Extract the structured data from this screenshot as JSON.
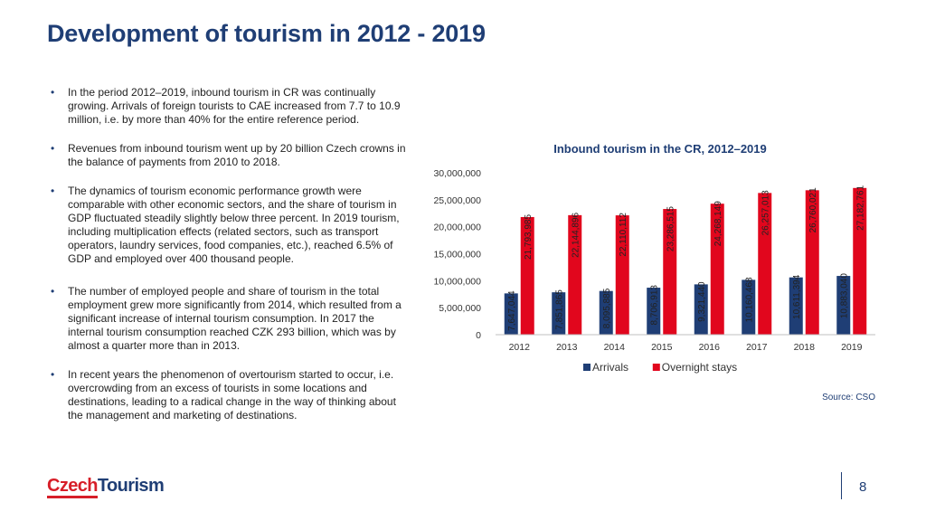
{
  "page": {
    "title": "Development of tourism in 2012 - 2019",
    "bullets": [
      "In the period 2012–2019, inbound tourism in CR was continually growing. Arrivals of foreign tourists to CAE increased from 7.7 to 10.9 million, i.e. by more than 40% for the entire reference period.",
      "Revenues from inbound tourism went up by 20 billion Czech crowns in the balance of payments from 2010 to 2018.",
      "The dynamics of tourism economic performance growth were comparable with other economic sectors, and the share of tourism in GDP fluctuated steadily slightly below three percent. In 2019 tourism, including multiplication effects (related sectors, such as transport operators, laundry services, food companies, etc.), reached 6.5% of GDP and employed over 400 thousand people.",
      "The number of employed people and share of tourism in the total employment grew more significantly from 2014, which resulted from a significant increase of internal tourism consumption. In 2017 the internal tourism consumption reached CZK 293 billion, which was by almost a quarter more than in 2013.",
      "In recent years the phenomenon of overtourism started to occur, i.e. overcrowding from an excess of tourists in some locations and destinations, leading to a radical change in the way of thinking about the management and marketing of destinations."
    ],
    "bullet_symbol": "•",
    "source": "Source: CSO",
    "logo": {
      "part1": "Czech",
      "part2": "Tourism"
    },
    "page_number": "8"
  },
  "chart_data": {
    "type": "bar",
    "title": "Inbound tourism in the CR, 2012–2019",
    "categories": [
      "2012",
      "2013",
      "2014",
      "2015",
      "2016",
      "2017",
      "2018",
      "2019"
    ],
    "series": [
      {
        "name": "Arrivals",
        "color": "#1f3e75",
        "values": [
          7647044,
          7851865,
          8095885,
          8706913,
          9321440,
          10160468,
          10611394,
          10883040
        ],
        "labels": [
          "7,647,044",
          "7,851,865",
          "8,095,885",
          "8,706,913",
          "9,321,440",
          "10,160,468",
          "10,611,394",
          "10,883,040"
        ]
      },
      {
        "name": "Overnight stays",
        "color": "#e1061d",
        "values": [
          21793985,
          22144896,
          22110112,
          23286515,
          24268149,
          26257013,
          26760021,
          27182761
        ],
        "labels": [
          "21,793,985",
          "22,144,896",
          "22,110,112",
          "23,286,515",
          "24,268,149",
          "26,257,013",
          "26,760,021",
          "27,182,761"
        ]
      }
    ],
    "ylim": [
      0,
      30000000
    ],
    "yticks": [
      0,
      5000000,
      10000000,
      15000000,
      20000000,
      25000000,
      30000000
    ],
    "ytick_labels": [
      "0",
      "5,000,000",
      "10,000,000",
      "15,000,000",
      "20,000,000",
      "25,000,000",
      "30,000,000"
    ],
    "grid": false,
    "legend": "bottom"
  }
}
